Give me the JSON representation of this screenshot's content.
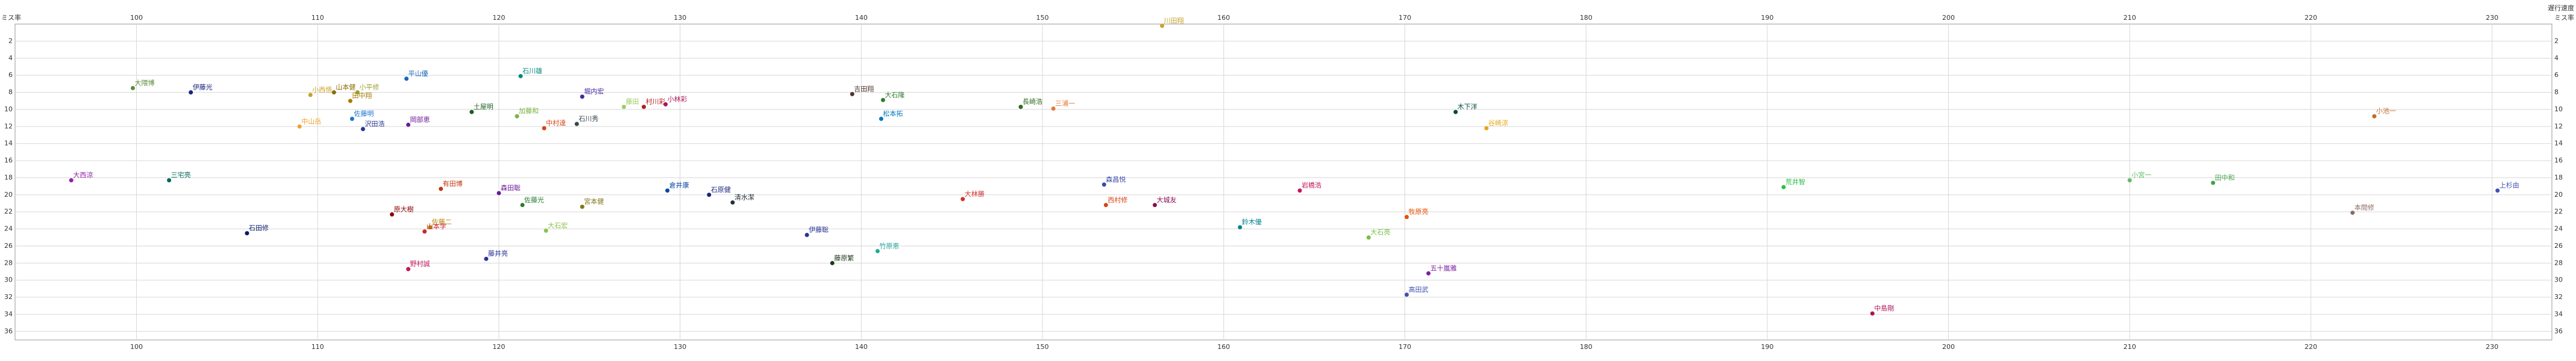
{
  "chart_data": {
    "type": "scatter",
    "y_label": "ミス率",
    "x_label": "遅行速度",
    "xlim": [
      93.3,
      233.3
    ],
    "ylim": [
      37,
      0
    ],
    "xticks": [
      100,
      110,
      120,
      130,
      140,
      150,
      160,
      170,
      180,
      190,
      200,
      210,
      220,
      230
    ],
    "yticks": [
      2,
      4,
      6,
      8,
      10,
      12,
      14,
      16,
      18,
      20,
      22,
      24,
      26,
      28,
      30,
      32,
      34,
      36
    ],
    "grid": true,
    "labels": [
      "大隈博",
      "伊藤光",
      "小西悟",
      "山本健",
      "小平修",
      "田中翔",
      "平山優",
      "石川雄",
      "堀内宏",
      "藤田",
      "村川彩",
      "小林彩",
      "吉田翔",
      "大石隆",
      "長崎浩",
      "三浦一",
      "川田翔",
      "木下洋",
      "小池一",
      "中山岳",
      "佐藤明",
      "沢田浩",
      "岡部恵",
      "土屋明",
      "加藤和",
      "中村達",
      "石川秀",
      "松本拓",
      "谷崎涼",
      "大西涼",
      "三宅亮",
      "有田博",
      "森田聡",
      "佐藤光",
      "宮本健",
      "倉井康",
      "石原健",
      "清水潔",
      "大林勝",
      "森昌悦",
      "西村修",
      "大城友",
      "岩橋浩",
      "荒井智",
      "小宮一",
      "田中和",
      "上杉由",
      "本間修",
      "原大樹",
      "佐藤二",
      "山本学",
      "石田修",
      "大石宏",
      "伊藤聡",
      "竹原恵",
      "藤原繁",
      "鈴木優",
      "牧原亮",
      "大石亮",
      "藤井亮",
      "野村誠",
      "五十嵐雅",
      "高田武",
      "中島剛"
    ],
    "x": [
      99.8,
      103.0,
      109.6,
      110.9,
      112.2,
      111.8,
      114.9,
      121.2,
      124.6,
      126.9,
      128.0,
      129.2,
      139.5,
      141.2,
      148.8,
      150.6,
      156.6,
      172.8,
      223.5,
      109.0,
      111.9,
      112.5,
      115.0,
      118.5,
      121.0,
      122.5,
      124.3,
      141.1,
      174.5,
      96.4,
      101.8,
      116.8,
      120.0,
      121.3,
      124.6,
      129.3,
      131.6,
      132.9,
      145.6,
      153.4,
      153.5,
      156.2,
      164.2,
      190.9,
      210.0,
      214.6,
      230.3,
      222.3,
      114.1,
      116.2,
      115.9,
      106.1,
      122.6,
      137.0,
      140.9,
      138.4,
      160.9,
      170.1,
      168.0,
      119.3,
      115.0,
      171.3,
      170.1,
      195.8
    ],
    "values": [
      7.5,
      8.0,
      8.3,
      8.0,
      8.0,
      9.0,
      6.4,
      6.1,
      8.5,
      9.7,
      9.7,
      9.4,
      8.2,
      8.9,
      9.7,
      9.9,
      0.2,
      10.3,
      10.8,
      12.0,
      11.1,
      12.3,
      11.8,
      10.3,
      10.8,
      12.2,
      11.7,
      11.1,
      12.2,
      18.3,
      18.3,
      19.3,
      19.8,
      21.2,
      21.4,
      19.5,
      20.0,
      20.9,
      20.5,
      18.8,
      21.2,
      21.2,
      19.5,
      19.1,
      18.3,
      18.6,
      19.5,
      22.1,
      22.3,
      23.8,
      24.3,
      24.5,
      24.2,
      24.7,
      26.6,
      28.0,
      23.8,
      22.6,
      25.0,
      27.5,
      28.7,
      29.2,
      31.7,
      33.9
    ],
    "colors": [
      "#5a8a3c",
      "#1a237e",
      "#c9a227",
      "#8a6d00",
      "#9aa12f",
      "#a67c00",
      "#1565c0",
      "#00897b",
      "#4527a0",
      "#9ccc65",
      "#b71c1c",
      "#ad1457",
      "#4e342e",
      "#2e7d32",
      "#33691e",
      "#e07b39",
      "#c9a227",
      "#004d40",
      "#bf6d2a",
      "#f0a030",
      "#1976d2",
      "#283593",
      "#6a1b9a",
      "#1b5e20",
      "#7cb342",
      "#d84315",
      "#37474f",
      "#0277bd",
      "#e6a817",
      "#8e24aa",
      "#00695c",
      "#bf360c",
      "#6a1b9a",
      "#2e7d32",
      "#827717",
      "#0d47a1",
      "#1a237e",
      "#263238",
      "#d32f2f",
      "#3949ab",
      "#d84315",
      "#880e4f",
      "#c2185b",
      "#2bbf4a",
      "#66bb6a",
      "#43a047",
      "#3f51b5",
      "#8d6e63",
      "#8b0000",
      "#b8860b",
      "#c62828",
      "#0d1b6e",
      "#8bc34a",
      "#283593",
      "#26a69a",
      "#1b3a1b",
      "#00838f",
      "#e65100",
      "#76c043",
      "#283593",
      "#c2185b",
      "#7b1fa2",
      "#3f51b5",
      "#ad1457"
    ]
  }
}
